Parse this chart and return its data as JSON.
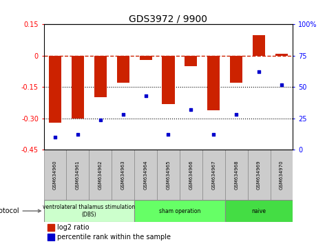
{
  "title": "GDS3972 / 9900",
  "samples": [
    "GSM634960",
    "GSM634961",
    "GSM634962",
    "GSM634963",
    "GSM634964",
    "GSM634965",
    "GSM634966",
    "GSM634967",
    "GSM634968",
    "GSM634969",
    "GSM634970"
  ],
  "log2_ratio": [
    -0.32,
    -0.3,
    -0.2,
    -0.13,
    -0.02,
    -0.23,
    -0.05,
    -0.26,
    -0.13,
    0.1,
    0.01
  ],
  "percentile_rank": [
    10,
    12,
    24,
    28,
    43,
    12,
    32,
    12,
    28,
    62,
    52
  ],
  "ylim_left": [
    -0.45,
    0.15
  ],
  "ylim_right": [
    0,
    100
  ],
  "bar_color": "#CC2200",
  "dot_color": "#0000CC",
  "hline_color": "#CC2200",
  "dotline_color": "black",
  "yticks_left": [
    0.15,
    0.0,
    -0.15,
    -0.3,
    -0.45
  ],
  "yticks_right": [
    0,
    25,
    50,
    75,
    100
  ],
  "protocol_groups": [
    {
      "label": "ventrolateral thalamus stimulation\n(DBS)",
      "start": 0,
      "end": 3,
      "color": "#CCFFCC"
    },
    {
      "label": "sham operation",
      "start": 4,
      "end": 7,
      "color": "#66FF66"
    },
    {
      "label": "naive",
      "start": 8,
      "end": 10,
      "color": "#44DD44"
    }
  ],
  "legend_red_label": "log2 ratio",
  "legend_blue_label": "percentile rank within the sample"
}
